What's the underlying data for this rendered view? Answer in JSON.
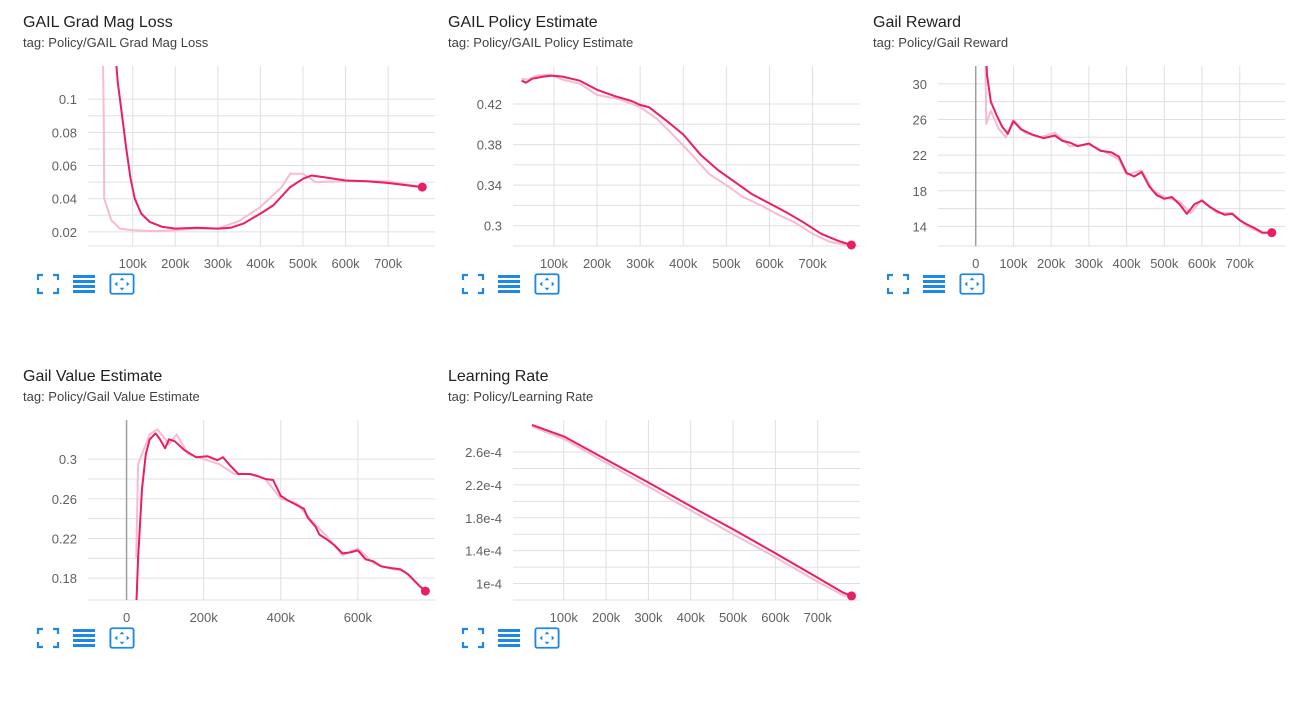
{
  "colors": {
    "accent": "#e91e63",
    "accent_light": "#f8bbd0",
    "grid": "#e0e0e0",
    "zero_axis": "#9e9e9e",
    "icon": "#1e88e5"
  },
  "toolbar": {
    "icons": [
      "fullscreen-icon",
      "list-icon",
      "fit-domain-icon"
    ]
  },
  "cards": [
    {
      "title": "GAIL Grad Mag Loss",
      "tag": "tag: Policy/GAIL Grad Mag Loss"
    },
    {
      "title": "GAIL Policy Estimate",
      "tag": "tag: Policy/GAIL Policy Estimate"
    },
    {
      "title": "Gail Reward",
      "tag": "tag: Policy/Gail Reward"
    },
    {
      "title": "Gail Value Estimate",
      "tag": "tag: Policy/Gail Value Estimate"
    },
    {
      "title": "Learning Rate",
      "tag": "tag: Policy/Learning Rate"
    }
  ],
  "chart_data": [
    {
      "type": "line",
      "xlim": [
        -5000,
        810000
      ],
      "ylim": [
        0.0115,
        0.12
      ],
      "xticks": [
        100000,
        200000,
        300000,
        400000,
        500000,
        600000,
        700000
      ],
      "xtick_labels": [
        "100k",
        "200k",
        "300k",
        "400k",
        "500k",
        "600k",
        "700k"
      ],
      "yticks": [
        0.02,
        0.04,
        0.06,
        0.08,
        0.1
      ],
      "ytick_labels": [
        "0.02",
        "0.04",
        "0.06",
        "0.08",
        "0.1"
      ],
      "grid": true,
      "zero_line": false,
      "smoothed": [
        [
          60000,
          0.125
        ],
        [
          65000,
          0.11
        ],
        [
          75000,
          0.09
        ],
        [
          85000,
          0.07
        ],
        [
          95000,
          0.052
        ],
        [
          105000,
          0.04
        ],
        [
          120000,
          0.031
        ],
        [
          140000,
          0.026
        ],
        [
          170000,
          0.023
        ],
        [
          200000,
          0.022
        ],
        [
          250000,
          0.0225
        ],
        [
          300000,
          0.022
        ],
        [
          330000,
          0.0225
        ],
        [
          360000,
          0.025
        ],
        [
          400000,
          0.031
        ],
        [
          430000,
          0.036
        ],
        [
          470000,
          0.047
        ],
        [
          500000,
          0.052
        ],
        [
          520000,
          0.054
        ],
        [
          550000,
          0.053
        ],
        [
          600000,
          0.051
        ],
        [
          650000,
          0.0505
        ],
        [
          700000,
          0.0495
        ],
        [
          780000,
          0.047
        ]
      ],
      "raw": [
        [
          30000,
          0.13
        ],
        [
          32000,
          0.085
        ],
        [
          33000,
          0.04
        ],
        [
          50000,
          0.027
        ],
        [
          70000,
          0.022
        ],
        [
          100000,
          0.021
        ],
        [
          150000,
          0.0205
        ],
        [
          200000,
          0.021
        ],
        [
          250000,
          0.022
        ],
        [
          300000,
          0.022
        ],
        [
          350000,
          0.0265
        ],
        [
          400000,
          0.035
        ],
        [
          450000,
          0.047
        ],
        [
          470000,
          0.055
        ],
        [
          500000,
          0.055
        ],
        [
          530000,
          0.05
        ],
        [
          600000,
          0.0505
        ],
        [
          700000,
          0.0505
        ],
        [
          780000,
          0.047
        ]
      ],
      "last_point": [
        780000,
        0.047
      ]
    },
    {
      "type": "line",
      "xlim": [
        5000,
        810000
      ],
      "ylim": [
        0.28,
        0.4575
      ],
      "xticks": [
        100000,
        200000,
        300000,
        400000,
        500000,
        600000,
        700000
      ],
      "xtick_labels": [
        "100k",
        "200k",
        "300k",
        "400k",
        "500k",
        "600k",
        "700k"
      ],
      "yticks": [
        0.3,
        0.34,
        0.38,
        0.42
      ],
      "ytick_labels": [
        "0.3",
        "0.34",
        "0.38",
        "0.42"
      ],
      "grid": true,
      "zero_line": false,
      "smoothed": [
        [
          25000,
          0.443
        ],
        [
          35000,
          0.441
        ],
        [
          50000,
          0.445
        ],
        [
          75000,
          0.447
        ],
        [
          95000,
          0.448
        ],
        [
          120000,
          0.447
        ],
        [
          160000,
          0.443
        ],
        [
          200000,
          0.434
        ],
        [
          240000,
          0.428
        ],
        [
          280000,
          0.423
        ],
        [
          300000,
          0.419
        ],
        [
          320000,
          0.417
        ],
        [
          360000,
          0.404
        ],
        [
          400000,
          0.39
        ],
        [
          440000,
          0.37
        ],
        [
          480000,
          0.355
        ],
        [
          520000,
          0.343
        ],
        [
          560000,
          0.331
        ],
        [
          600000,
          0.322
        ],
        [
          640000,
          0.313
        ],
        [
          680000,
          0.303
        ],
        [
          720000,
          0.292
        ],
        [
          760000,
          0.285
        ],
        [
          790000,
          0.281
        ]
      ],
      "raw": [
        [
          25000,
          0.445
        ],
        [
          40000,
          0.444
        ],
        [
          60000,
          0.448
        ],
        [
          90000,
          0.449
        ],
        [
          120000,
          0.444
        ],
        [
          160000,
          0.44
        ],
        [
          200000,
          0.429
        ],
        [
          250000,
          0.425
        ],
        [
          300000,
          0.417
        ],
        [
          340000,
          0.405
        ],
        [
          380000,
          0.388
        ],
        [
          420000,
          0.37
        ],
        [
          460000,
          0.351
        ],
        [
          500000,
          0.34
        ],
        [
          540000,
          0.328
        ],
        [
          580000,
          0.32
        ],
        [
          620000,
          0.311
        ],
        [
          660000,
          0.303
        ],
        [
          700000,
          0.292
        ],
        [
          740000,
          0.284
        ],
        [
          780000,
          0.281
        ]
      ],
      "last_point": [
        790000,
        0.281
      ]
    },
    {
      "type": "line",
      "xlim": [
        -100000,
        820000
      ],
      "ylim": [
        11.8,
        32
      ],
      "xticks": [
        0,
        100000,
        200000,
        300000,
        400000,
        500000,
        600000,
        700000
      ],
      "xtick_labels": [
        "0",
        "100k",
        "200k",
        "300k",
        "400k",
        "500k",
        "600k",
        "700k"
      ],
      "yticks": [
        14,
        18,
        22,
        26,
        30
      ],
      "ytick_labels": [
        "14",
        "18",
        "22",
        "26",
        "30"
      ],
      "grid": true,
      "zero_line": true,
      "smoothed": [
        [
          27000,
          34
        ],
        [
          30000,
          31
        ],
        [
          40000,
          28
        ],
        [
          55000,
          26.5
        ],
        [
          70000,
          25.2
        ],
        [
          85000,
          24.4
        ],
        [
          100000,
          25.8
        ],
        [
          120000,
          24.9
        ],
        [
          150000,
          24.3
        ],
        [
          180000,
          23.9
        ],
        [
          210000,
          24.2
        ],
        [
          230000,
          23.6
        ],
        [
          250000,
          23.4
        ],
        [
          270000,
          23
        ],
        [
          300000,
          23.3
        ],
        [
          330000,
          22.5
        ],
        [
          360000,
          22.3
        ],
        [
          380000,
          21.8
        ],
        [
          400000,
          20
        ],
        [
          420000,
          19.6
        ],
        [
          440000,
          20.1
        ],
        [
          460000,
          18.5
        ],
        [
          480000,
          17.5
        ],
        [
          500000,
          17.1
        ],
        [
          520000,
          17.3
        ],
        [
          540000,
          16.5
        ],
        [
          560000,
          15.4
        ],
        [
          580000,
          16.5
        ],
        [
          600000,
          16.9
        ],
        [
          620000,
          16.2
        ],
        [
          640000,
          15.7
        ],
        [
          660000,
          15.3
        ],
        [
          680000,
          15.4
        ],
        [
          700000,
          14.7
        ],
        [
          720000,
          14.2
        ],
        [
          740000,
          13.8
        ],
        [
          760000,
          13.3
        ],
        [
          785000,
          13.3
        ]
      ],
      "raw": [
        [
          25000,
          35
        ],
        [
          28000,
          25.5
        ],
        [
          40000,
          27
        ],
        [
          60000,
          25
        ],
        [
          80000,
          24
        ],
        [
          100000,
          26
        ],
        [
          130000,
          24.5
        ],
        [
          170000,
          24
        ],
        [
          210000,
          24.5
        ],
        [
          250000,
          23
        ],
        [
          300000,
          23.2
        ],
        [
          340000,
          22.4
        ],
        [
          380000,
          21.5
        ],
        [
          400000,
          19.8
        ],
        [
          440000,
          20.3
        ],
        [
          470000,
          18
        ],
        [
          500000,
          17.3
        ],
        [
          540000,
          16.8
        ],
        [
          570000,
          15.5
        ],
        [
          600000,
          17
        ],
        [
          640000,
          15.5
        ],
        [
          680000,
          15.5
        ],
        [
          720000,
          14
        ],
        [
          760000,
          13.2
        ],
        [
          785000,
          13.3
        ]
      ],
      "last_point": [
        785000,
        13.3
      ]
    },
    {
      "type": "line",
      "xlim": [
        -100000,
        800000
      ],
      "ylim": [
        0.158,
        0.3395
      ],
      "xticks": [
        0,
        200000,
        400000,
        600000
      ],
      "xtick_labels": [
        "0",
        "200k",
        "400k",
        "600k"
      ],
      "yticks": [
        0.18,
        0.22,
        0.26,
        0.3
      ],
      "ytick_labels": [
        "0.18",
        "0.22",
        "0.26",
        "0.3"
      ],
      "grid": true,
      "zero_line": true,
      "smoothed": [
        [
          25000,
          0.15
        ],
        [
          30000,
          0.2
        ],
        [
          40000,
          0.27
        ],
        [
          50000,
          0.305
        ],
        [
          60000,
          0.32
        ],
        [
          75000,
          0.326
        ],
        [
          85000,
          0.321
        ],
        [
          100000,
          0.311
        ],
        [
          110000,
          0.32
        ],
        [
          125000,
          0.318
        ],
        [
          150000,
          0.309
        ],
        [
          180000,
          0.302
        ],
        [
          210000,
          0.303
        ],
        [
          235000,
          0.299
        ],
        [
          250000,
          0.302
        ],
        [
          270000,
          0.293
        ],
        [
          290000,
          0.285
        ],
        [
          320000,
          0.285
        ],
        [
          340000,
          0.283
        ],
        [
          360000,
          0.28
        ],
        [
          380000,
          0.279
        ],
        [
          400000,
          0.263
        ],
        [
          420000,
          0.258
        ],
        [
          440000,
          0.254
        ],
        [
          460000,
          0.25
        ],
        [
          470000,
          0.241
        ],
        [
          490000,
          0.232
        ],
        [
          500000,
          0.224
        ],
        [
          520000,
          0.219
        ],
        [
          540000,
          0.213
        ],
        [
          560000,
          0.205
        ],
        [
          580000,
          0.206
        ],
        [
          600000,
          0.208
        ],
        [
          620000,
          0.199
        ],
        [
          640000,
          0.197
        ],
        [
          660000,
          0.192
        ],
        [
          690000,
          0.19
        ],
        [
          710000,
          0.189
        ],
        [
          730000,
          0.184
        ],
        [
          760000,
          0.172
        ],
        [
          775000,
          0.167
        ]
      ],
      "raw": [
        [
          25000,
          0.2
        ],
        [
          30000,
          0.295
        ],
        [
          45000,
          0.31
        ],
        [
          60000,
          0.325
        ],
        [
          80000,
          0.33
        ],
        [
          110000,
          0.315
        ],
        [
          130000,
          0.325
        ],
        [
          160000,
          0.305
        ],
        [
          200000,
          0.3
        ],
        [
          240000,
          0.295
        ],
        [
          280000,
          0.285
        ],
        [
          320000,
          0.285
        ],
        [
          360000,
          0.28
        ],
        [
          400000,
          0.26
        ],
        [
          440000,
          0.256
        ],
        [
          480000,
          0.238
        ],
        [
          520000,
          0.222
        ],
        [
          560000,
          0.203
        ],
        [
          600000,
          0.21
        ],
        [
          640000,
          0.195
        ],
        [
          680000,
          0.19
        ],
        [
          720000,
          0.187
        ],
        [
          760000,
          0.172
        ],
        [
          775000,
          0.168
        ]
      ],
      "last_point": [
        775000,
        0.167
      ]
    },
    {
      "type": "line",
      "xlim": [
        -20000,
        800000
      ],
      "ylim": [
        8e-05,
        0.000299
      ],
      "xticks": [
        100000,
        200000,
        300000,
        400000,
        500000,
        600000,
        700000
      ],
      "xtick_labels": [
        "100k",
        "200k",
        "300k",
        "400k",
        "500k",
        "600k",
        "700k"
      ],
      "yticks": [
        0.0001,
        0.00014,
        0.00018,
        0.00022,
        0.00026
      ],
      "ytick_labels": [
        "1e-4",
        "1.4e-4",
        "1.8e-4",
        "2.2e-4",
        "2.6e-4"
      ],
      "grid": true,
      "zero_line": false,
      "smoothed": [
        [
          25000,
          0.000293
        ],
        [
          100000,
          0.000279
        ],
        [
          200000,
          0.000251
        ],
        [
          300000,
          0.000223
        ],
        [
          400000,
          0.000194
        ],
        [
          500000,
          0.000166
        ],
        [
          600000,
          0.000137
        ],
        [
          700000,
          0.000107
        ],
        [
          760000,
          8.9e-05
        ],
        [
          780000,
          8.5e-05
        ]
      ],
      "raw": [
        [
          25000,
          0.000291
        ],
        [
          100000,
          0.000276
        ],
        [
          200000,
          0.000247
        ],
        [
          300000,
          0.000218
        ],
        [
          400000,
          0.000189
        ],
        [
          500000,
          0.00016
        ],
        [
          600000,
          0.000132
        ],
        [
          700000,
          0.000102
        ],
        [
          760000,
          8.6e-05
        ],
        [
          780000,
          8.3e-05
        ]
      ],
      "last_point": [
        780000,
        8.5e-05
      ]
    }
  ]
}
